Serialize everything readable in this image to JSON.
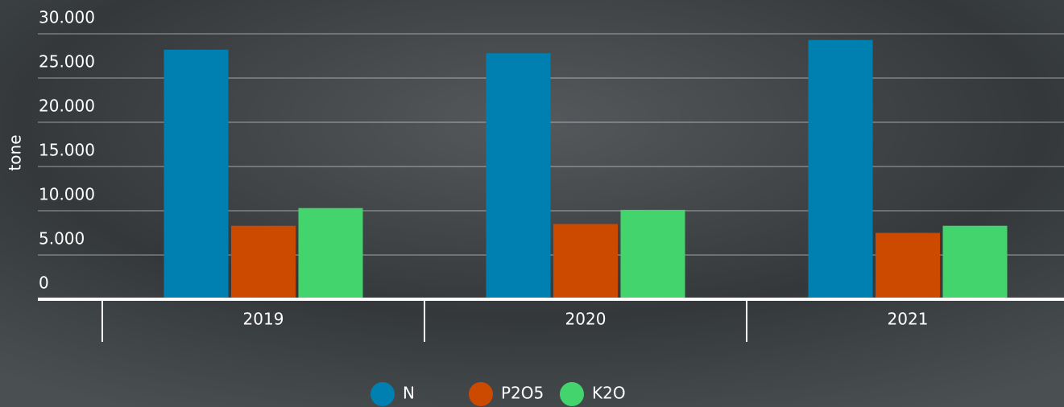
{
  "chart_data": {
    "type": "bar",
    "y_label": "tone",
    "categories": [
      "2019",
      "2020",
      "2021"
    ],
    "series": [
      {
        "name": "N",
        "color": "#0080b0",
        "values": [
          28200,
          27800,
          29300
        ]
      },
      {
        "name": "P2O5",
        "color": "#cc4a00",
        "values": [
          8300,
          8500,
          7500
        ]
      },
      {
        "name": "K2O",
        "color": "#44d46e",
        "values": [
          10300,
          10100,
          8300
        ]
      }
    ],
    "ylim": [
      0,
      30000
    ],
    "yticks": [
      0,
      {
        "value": 5000,
        "label": "5.000"
      },
      {
        "value": 10000,
        "label": "10.000"
      },
      {
        "value": 15000,
        "label": "15.000"
      },
      {
        "value": 20000,
        "label": "20.000"
      },
      {
        "value": 25000,
        "label": "25.000"
      },
      {
        "value": 30000,
        "label": "30.000"
      }
    ],
    "grid": true
  }
}
